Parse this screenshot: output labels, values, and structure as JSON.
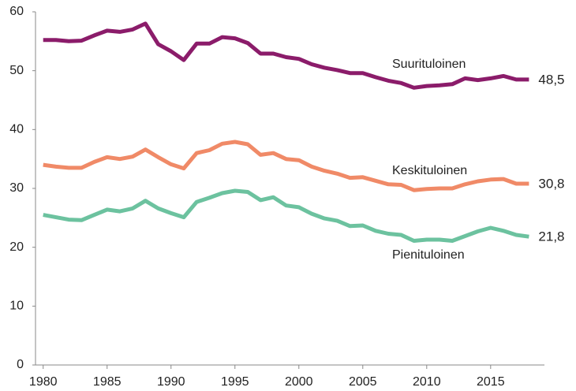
{
  "chart_data": {
    "type": "line",
    "x": [
      1980,
      1981,
      1982,
      1983,
      1984,
      1985,
      1986,
      1987,
      1988,
      1989,
      1990,
      1991,
      1992,
      1993,
      1994,
      1995,
      1996,
      1997,
      1998,
      1999,
      2000,
      2001,
      2002,
      2003,
      2004,
      2005,
      2006,
      2007,
      2008,
      2009,
      2010,
      2011,
      2012,
      2013,
      2014,
      2015,
      2016,
      2017,
      2018
    ],
    "series": [
      {
        "name": "Suurituloinen",
        "color": "#8b1c6a",
        "values": [
          55.2,
          55.2,
          55.0,
          55.1,
          56.0,
          56.8,
          56.6,
          57.0,
          58.0,
          54.5,
          53.3,
          51.8,
          54.6,
          54.6,
          55.7,
          55.5,
          54.7,
          52.9,
          52.9,
          52.3,
          52.0,
          51.1,
          50.5,
          50.1,
          49.6,
          49.6,
          48.9,
          48.3,
          47.9,
          47.1,
          47.4,
          47.5,
          47.7,
          48.7,
          48.4,
          48.7,
          49.1,
          48.5,
          48.5
        ],
        "value_labels": [
          null,
          null,
          null,
          null,
          null,
          null,
          null,
          null,
          null,
          null,
          null,
          null,
          null,
          null,
          null,
          null,
          null,
          null,
          null,
          null,
          null,
          null,
          null,
          null,
          null,
          null,
          null,
          null,
          null,
          null,
          null,
          null,
          null,
          null,
          null,
          null,
          null,
          null,
          "48,5"
        ]
      },
      {
        "name": "Keskituloinen",
        "color": "#f08a67",
        "values": [
          34.0,
          33.7,
          33.5,
          33.5,
          34.5,
          35.3,
          35.0,
          35.4,
          36.6,
          35.3,
          34.1,
          33.4,
          36.0,
          36.5,
          37.6,
          37.9,
          37.5,
          35.7,
          36.0,
          35.0,
          34.8,
          33.7,
          33.0,
          32.5,
          31.8,
          31.9,
          31.3,
          30.7,
          30.6,
          29.7,
          29.9,
          30.0,
          30.0,
          30.7,
          31.2,
          31.5,
          31.6,
          30.8,
          30.8
        ],
        "value_labels": [
          null,
          null,
          null,
          null,
          null,
          null,
          null,
          null,
          null,
          null,
          null,
          null,
          null,
          null,
          null,
          null,
          null,
          null,
          null,
          null,
          null,
          null,
          null,
          null,
          null,
          null,
          null,
          null,
          null,
          null,
          null,
          null,
          null,
          null,
          null,
          null,
          null,
          null,
          "30,8"
        ]
      },
      {
        "name": "Pienituloinen",
        "color": "#6cc29f",
        "values": [
          25.5,
          25.1,
          24.7,
          24.6,
          25.5,
          26.4,
          26.1,
          26.6,
          27.9,
          26.6,
          25.8,
          25.1,
          27.7,
          28.4,
          29.2,
          29.6,
          29.4,
          28.0,
          28.5,
          27.1,
          26.8,
          25.7,
          24.9,
          24.5,
          23.6,
          23.7,
          22.8,
          22.3,
          22.1,
          21.1,
          21.3,
          21.3,
          21.1,
          21.9,
          22.7,
          23.3,
          22.8,
          22.1,
          21.8
        ],
        "value_labels": [
          null,
          null,
          null,
          null,
          null,
          null,
          null,
          null,
          null,
          null,
          null,
          null,
          null,
          null,
          null,
          null,
          null,
          null,
          null,
          null,
          null,
          null,
          null,
          null,
          null,
          null,
          null,
          null,
          null,
          null,
          null,
          null,
          null,
          null,
          null,
          null,
          null,
          null,
          "21,8"
        ]
      }
    ],
    "xlim": [
      1979.4,
      2018.9
    ],
    "xticks": [
      1980,
      1985,
      1990,
      1995,
      2000,
      2005,
      2010,
      2015
    ],
    "ylim": [
      0,
      60
    ],
    "yticks": [
      0,
      10,
      20,
      30,
      40,
      50,
      60
    ],
    "grid": false
  }
}
